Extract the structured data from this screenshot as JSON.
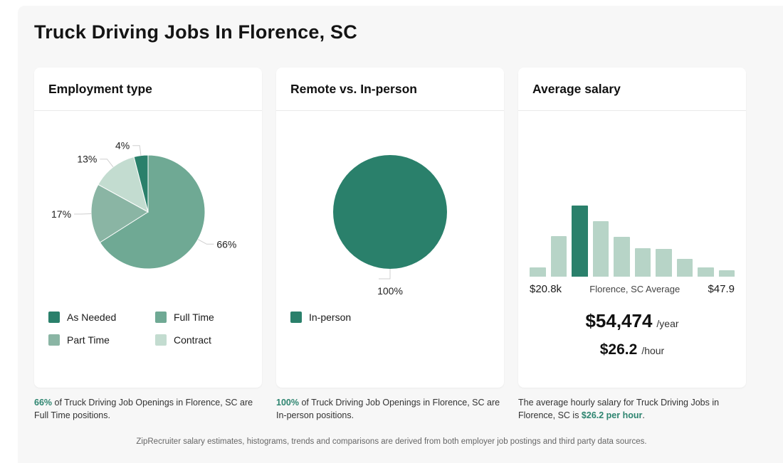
{
  "page": {
    "title": "Truck Driving Jobs In Florence, SC",
    "disclaimer": "ZipRecruiter salary estimates, histograms, trends and comparisons are derived from both employer job postings and third party data sources."
  },
  "colors": {
    "dark_green": "#2a806b",
    "medium_green": "#6fa994",
    "sage_green": "#8ab5a4",
    "light_green": "#c3dcd0",
    "bar_light": "#b7d4c7",
    "accent_text": "#2e8570",
    "leader_line": "#cfcfcf",
    "pie_label_text": "#222222"
  },
  "cards": [
    {
      "title": "Employment type",
      "footnote": {
        "pre": "",
        "highlight": "66%",
        "post": " of Truck Driving Job Openings in Florence, SC are Full Time positions."
      }
    },
    {
      "title": "Remote vs. In-person",
      "footnote": {
        "pre": "",
        "highlight": "100%",
        "post": " of Truck Driving Job Openings in Florence, SC are In-person positions."
      }
    },
    {
      "title": "Average salary",
      "axis": {
        "left": "$20.8k",
        "center": "Florence, SC Average",
        "right": "$47.9"
      },
      "salary": {
        "year": "$54,474",
        "year_suffix": "/year",
        "hour": "$26.2",
        "hour_suffix": "/hour"
      },
      "footnote": {
        "pre": "The average hourly salary for Truck Driving Jobs in Florence, SC is ",
        "highlight": "$26.2 per hour",
        "post": "."
      }
    }
  ],
  "chart_data": [
    {
      "type": "pie",
      "title": "Employment type",
      "slices": [
        {
          "label": "Full Time",
          "value": 66,
          "color": "medium_green"
        },
        {
          "label": "Part Time",
          "value": 17,
          "color": "sage_green"
        },
        {
          "label": "Contract",
          "value": 13,
          "color": "light_green"
        },
        {
          "label": "As Needed",
          "value": 4,
          "color": "dark_green"
        }
      ],
      "legend": [
        {
          "label": "As Needed",
          "color": "dark_green"
        },
        {
          "label": "Full Time",
          "color": "medium_green"
        },
        {
          "label": "Part Time",
          "color": "sage_green"
        },
        {
          "label": "Contract",
          "color": "light_green"
        }
      ],
      "label_format": "percent",
      "legend_position": "bottom"
    },
    {
      "type": "pie",
      "title": "Remote vs. In-person",
      "slices": [
        {
          "label": "In-person",
          "value": 100,
          "color": "dark_green"
        }
      ],
      "legend": [
        {
          "label": "In-person",
          "color": "dark_green"
        }
      ],
      "label_format": "percent",
      "legend_position": "bottom"
    },
    {
      "type": "bar",
      "title": "Average salary",
      "values": [
        13,
        57,
        100,
        78,
        56,
        40,
        39,
        25,
        13,
        9
      ],
      "highlight_index": 2,
      "bar_color": "bar_light",
      "highlight_color": "dark_green",
      "xlabels": [
        "$20.8k",
        "Florence, SC Average",
        "$47.9"
      ],
      "ylim": [
        0,
        100
      ],
      "grid": false,
      "salary_year": "$54,474",
      "salary_hour": "$26.2"
    }
  ]
}
